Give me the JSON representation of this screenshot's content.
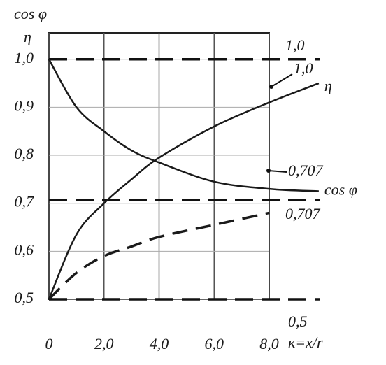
{
  "chart_data": {
    "type": "line",
    "x_label": "к=x/r",
    "y_labels": [
      "cos φ",
      "η"
    ],
    "x": [
      0,
      1,
      2,
      3,
      4,
      6,
      8,
      9.8
    ],
    "series": [
      {
        "name": "η",
        "color": "#1a1a1a",
        "dashed": false,
        "values": [
          0.5,
          0.635,
          0.7,
          0.75,
          0.795,
          0.86,
          0.91,
          0.95
        ]
      },
      {
        "name": "cos φ",
        "color": "#1a1a1a",
        "dashed": false,
        "values": [
          1.0,
          0.9,
          0.85,
          0.81,
          0.785,
          0.745,
          0.73,
          0.725
        ]
      },
      {
        "color": "#1a1a1a",
        "dashed": true,
        "values": [
          0.5,
          0.555,
          0.59,
          0.61,
          0.63,
          0.655,
          0.68,
          null
        ]
      }
    ],
    "xlim": [
      0,
      8
    ],
    "ylim": [
      0.5,
      1.055
    ],
    "xticks": [
      {
        "value": 0,
        "label": "0"
      },
      {
        "value": 2,
        "label": "2,0"
      },
      {
        "value": 4,
        "label": "4,0"
      },
      {
        "value": 6,
        "label": "6,0"
      },
      {
        "value": 8,
        "label": "8,0"
      }
    ],
    "yticks": [
      {
        "value": 0.5,
        "label": "0,5"
      },
      {
        "value": 0.6,
        "label": "0,6"
      },
      {
        "value": 0.7,
        "label": "0,7"
      },
      {
        "value": 0.8,
        "label": "0,8"
      },
      {
        "value": 0.9,
        "label": "0,9"
      },
      {
        "value": 1.0,
        "label": "1,0"
      }
    ],
    "grid": true,
    "hlines": [
      {
        "value": 1.0,
        "label": "1,0"
      },
      {
        "value": 0.707,
        "label": "0,707"
      },
      {
        "value": 0.5,
        "label": "0,5"
      }
    ],
    "annotations": [
      "1,0",
      "0,707"
    ]
  }
}
